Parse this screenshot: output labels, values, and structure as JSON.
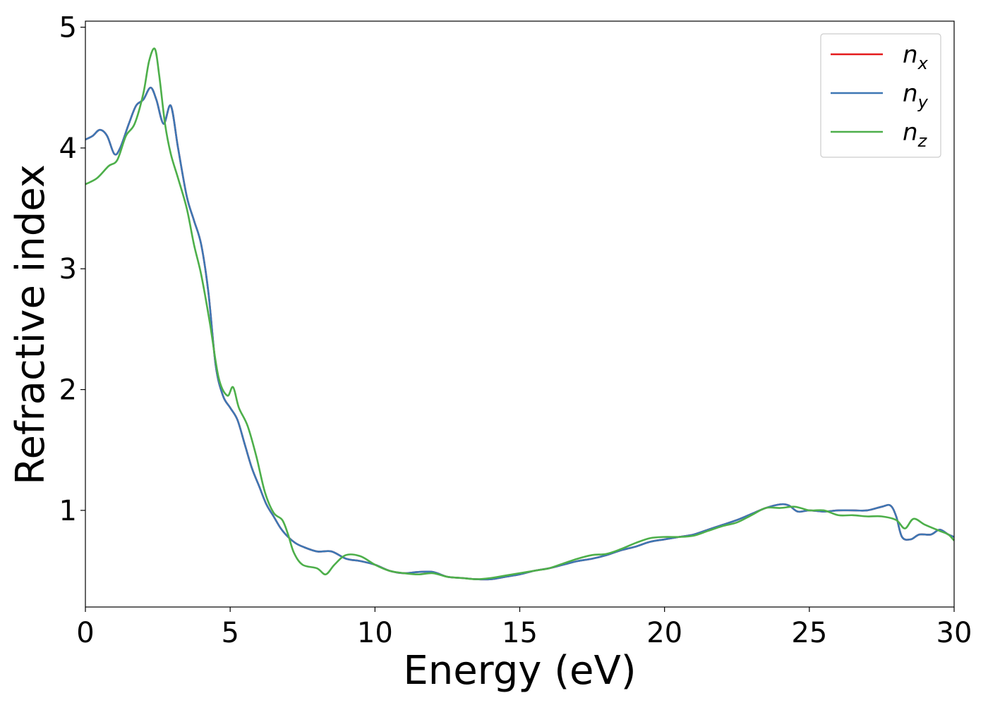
{
  "chart_data": {
    "type": "line",
    "title": "",
    "xlabel": "Energy (eV)",
    "ylabel": "Refractive index",
    "xlim": [
      0,
      30
    ],
    "ylim": [
      0.2,
      5.05
    ],
    "xticks": [
      0,
      5,
      10,
      15,
      20,
      25,
      30
    ],
    "yticks": [
      1,
      2,
      3,
      4,
      5
    ],
    "grid": false,
    "legend_position": "top-right",
    "series": [
      {
        "name": "n_x",
        "legend_main": "n",
        "legend_sub": "x",
        "color": "#e41a1c",
        "x": [
          0,
          0.25,
          0.5,
          0.75,
          1.0,
          1.2,
          1.5,
          1.75,
          2.0,
          2.25,
          2.45,
          2.7,
          2.95,
          3.2,
          3.5,
          3.75,
          4.0,
          4.25,
          4.5,
          4.75,
          5.0,
          5.25,
          5.5,
          5.75,
          6.0,
          6.25,
          6.5,
          6.75,
          7.0,
          7.25,
          7.5,
          8.0,
          8.5,
          9.0,
          9.5,
          10.0,
          10.5,
          11.0,
          11.5,
          12.0,
          12.5,
          13.0,
          13.5,
          14.0,
          14.5,
          15.0,
          15.5,
          16.0,
          16.5,
          17.0,
          17.5,
          18.0,
          18.5,
          19.0,
          19.5,
          20.0,
          20.5,
          21.0,
          21.5,
          22.0,
          22.5,
          23.0,
          23.5,
          24.0,
          24.3,
          24.6,
          25.0,
          25.5,
          26.0,
          26.5,
          27.0,
          27.5,
          27.8,
          28.0,
          28.2,
          28.5,
          28.8,
          29.2,
          29.5,
          29.8,
          30.0
        ],
        "y": [
          4.07,
          4.1,
          4.15,
          4.1,
          3.95,
          4.0,
          4.2,
          4.35,
          4.4,
          4.5,
          4.4,
          4.2,
          4.35,
          4.0,
          3.6,
          3.4,
          3.2,
          2.8,
          2.2,
          1.95,
          1.85,
          1.75,
          1.55,
          1.35,
          1.2,
          1.05,
          0.95,
          0.85,
          0.78,
          0.73,
          0.7,
          0.66,
          0.66,
          0.6,
          0.58,
          0.55,
          0.5,
          0.48,
          0.49,
          0.49,
          0.45,
          0.44,
          0.43,
          0.43,
          0.45,
          0.47,
          0.5,
          0.52,
          0.55,
          0.58,
          0.6,
          0.63,
          0.67,
          0.7,
          0.74,
          0.76,
          0.78,
          0.8,
          0.84,
          0.88,
          0.92,
          0.97,
          1.02,
          1.05,
          1.04,
          0.99,
          1.0,
          0.99,
          1.0,
          1.0,
          1.0,
          1.03,
          1.04,
          0.95,
          0.78,
          0.76,
          0.8,
          0.8,
          0.84,
          0.8,
          0.78
        ]
      },
      {
        "name": "n_y",
        "legend_main": "n",
        "legend_sub": "y",
        "color": "#3d77b4",
        "x": [
          0,
          0.25,
          0.5,
          0.75,
          1.0,
          1.2,
          1.5,
          1.75,
          2.0,
          2.25,
          2.45,
          2.7,
          2.95,
          3.2,
          3.5,
          3.75,
          4.0,
          4.25,
          4.5,
          4.75,
          5.0,
          5.25,
          5.5,
          5.75,
          6.0,
          6.25,
          6.5,
          6.75,
          7.0,
          7.25,
          7.5,
          8.0,
          8.5,
          9.0,
          9.5,
          10.0,
          10.5,
          11.0,
          11.5,
          12.0,
          12.5,
          13.0,
          13.5,
          14.0,
          14.5,
          15.0,
          15.5,
          16.0,
          16.5,
          17.0,
          17.5,
          18.0,
          18.5,
          19.0,
          19.5,
          20.0,
          20.5,
          21.0,
          21.5,
          22.0,
          22.5,
          23.0,
          23.5,
          24.0,
          24.3,
          24.6,
          25.0,
          25.5,
          26.0,
          26.5,
          27.0,
          27.5,
          27.8,
          28.0,
          28.2,
          28.5,
          28.8,
          29.2,
          29.5,
          29.8,
          30.0
        ],
        "y": [
          4.07,
          4.1,
          4.15,
          4.1,
          3.95,
          4.0,
          4.2,
          4.35,
          4.4,
          4.5,
          4.4,
          4.2,
          4.35,
          4.0,
          3.6,
          3.4,
          3.2,
          2.8,
          2.2,
          1.95,
          1.85,
          1.75,
          1.55,
          1.35,
          1.2,
          1.05,
          0.95,
          0.85,
          0.78,
          0.73,
          0.7,
          0.66,
          0.66,
          0.6,
          0.58,
          0.55,
          0.5,
          0.48,
          0.49,
          0.49,
          0.45,
          0.44,
          0.43,
          0.43,
          0.45,
          0.47,
          0.5,
          0.52,
          0.55,
          0.58,
          0.6,
          0.63,
          0.67,
          0.7,
          0.74,
          0.76,
          0.78,
          0.8,
          0.84,
          0.88,
          0.92,
          0.97,
          1.02,
          1.05,
          1.04,
          0.99,
          1.0,
          0.99,
          1.0,
          1.0,
          1.0,
          1.03,
          1.04,
          0.95,
          0.78,
          0.76,
          0.8,
          0.8,
          0.84,
          0.8,
          0.78
        ]
      },
      {
        "name": "n_z",
        "legend_main": "n",
        "legend_sub": "z",
        "color": "#4daf4a",
        "x": [
          0,
          0.4,
          0.8,
          1.1,
          1.4,
          1.7,
          2.0,
          2.2,
          2.4,
          2.55,
          2.75,
          2.95,
          3.2,
          3.5,
          3.75,
          4.0,
          4.3,
          4.6,
          4.9,
          5.1,
          5.3,
          5.6,
          5.9,
          6.2,
          6.5,
          6.8,
          7.0,
          7.2,
          7.5,
          8.0,
          8.3,
          8.6,
          9.0,
          9.5,
          10.0,
          10.5,
          11.0,
          11.5,
          12.0,
          12.5,
          13.0,
          13.5,
          14.0,
          14.5,
          15.0,
          15.5,
          16.0,
          16.5,
          17.0,
          17.5,
          18.0,
          18.5,
          19.0,
          19.5,
          20.0,
          20.5,
          21.0,
          21.5,
          22.0,
          22.5,
          23.0,
          23.5,
          24.0,
          24.5,
          25.0,
          25.5,
          26.0,
          26.5,
          27.0,
          27.5,
          28.0,
          28.3,
          28.6,
          29.0,
          29.5,
          29.8,
          30.0
        ],
        "y": [
          3.7,
          3.75,
          3.85,
          3.9,
          4.1,
          4.2,
          4.45,
          4.72,
          4.82,
          4.6,
          4.2,
          3.95,
          3.75,
          3.5,
          3.2,
          2.95,
          2.55,
          2.1,
          1.95,
          2.02,
          1.85,
          1.7,
          1.45,
          1.15,
          0.98,
          0.92,
          0.8,
          0.65,
          0.55,
          0.52,
          0.47,
          0.55,
          0.63,
          0.62,
          0.55,
          0.5,
          0.48,
          0.47,
          0.48,
          0.45,
          0.44,
          0.43,
          0.44,
          0.46,
          0.48,
          0.5,
          0.52,
          0.56,
          0.6,
          0.63,
          0.64,
          0.68,
          0.73,
          0.77,
          0.78,
          0.78,
          0.79,
          0.83,
          0.87,
          0.9,
          0.96,
          1.02,
          1.02,
          1.03,
          1.0,
          1.0,
          0.96,
          0.96,
          0.95,
          0.95,
          0.92,
          0.85,
          0.93,
          0.88,
          0.83,
          0.8,
          0.75
        ]
      }
    ]
  }
}
